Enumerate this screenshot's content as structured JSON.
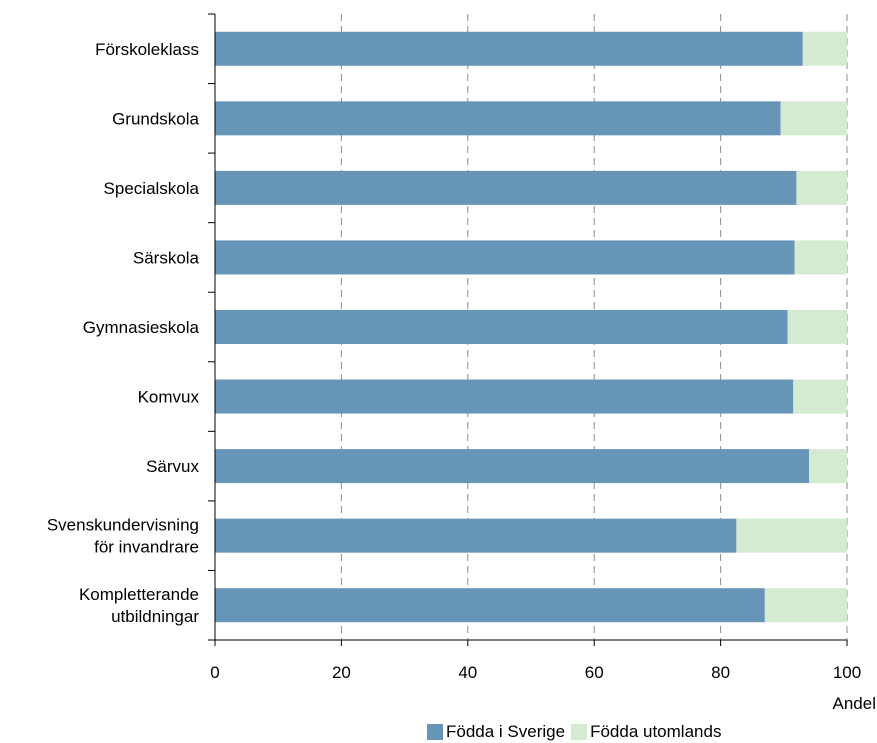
{
  "chart_data": {
    "type": "bar",
    "orientation": "horizontal",
    "stacked": true,
    "categories": [
      "Förskoleklass",
      "Grundskola",
      "Specialskola",
      "Särskola",
      "Gymnasieskola",
      "Komvux",
      "Särvux",
      "Svenskundervisning för invandrare",
      "Kompletterande utbildningar"
    ],
    "category_lines": [
      [
        "Förskoleklass"
      ],
      [
        "Grundskola"
      ],
      [
        "Specialskola"
      ],
      [
        "Särskola"
      ],
      [
        "Gymnasieskola"
      ],
      [
        "Komvux"
      ],
      [
        "Särvux"
      ],
      [
        "Svenskundervisning",
        "för invandrare"
      ],
      [
        "Kompletterande",
        "utbildningar"
      ]
    ],
    "series": [
      {
        "name": "Födda i Sverige",
        "color": "#6795b7",
        "values": [
          93,
          89.5,
          92,
          91.7,
          90.6,
          91.5,
          94,
          82.5,
          87
        ]
      },
      {
        "name": "Födda utomlands",
        "color": "#d5ebd1",
        "values": [
          7,
          10.5,
          8,
          8.3,
          9.4,
          8.5,
          6,
          17.5,
          13
        ]
      }
    ],
    "xlim": [
      0,
      100
    ],
    "xticks": [
      0,
      20,
      40,
      60,
      80,
      100
    ],
    "xlabel": "Andel",
    "title": "",
    "grid": "vertical dashed",
    "legend_position": "bottom"
  }
}
